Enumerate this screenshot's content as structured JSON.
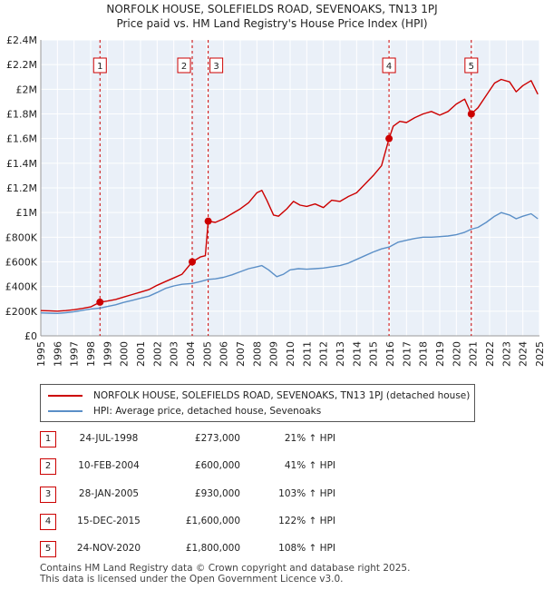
{
  "title_line1": "NORFOLK HOUSE, SOLEFIELDS ROAD, SEVENOAKS, TN13 1PJ",
  "title_line2": "Price paid vs. HM Land Registry's House Price Index (HPI)",
  "colors": {
    "property": "#cc0000",
    "hpi": "#5b8fc7",
    "bg": "#eaf0f8",
    "grid": "#ffffff"
  },
  "legend": {
    "property": "NORFOLK HOUSE, SOLEFIELDS ROAD, SEVENOAKS, TN13 1PJ (detached house)",
    "hpi": "HPI: Average price, detached house, Sevenoaks"
  },
  "sales": [
    {
      "num": "1",
      "date": "24-JUL-1998",
      "price": "£273,000",
      "hpi": "21% ↑ HPI"
    },
    {
      "num": "2",
      "date": "10-FEB-2004",
      "price": "£600,000",
      "hpi": "41% ↑ HPI"
    },
    {
      "num": "3",
      "date": "28-JAN-2005",
      "price": "£930,000",
      "hpi": "103% ↑ HPI"
    },
    {
      "num": "4",
      "date": "15-DEC-2015",
      "price": "£1,600,000",
      "hpi": "122% ↑ HPI"
    },
    {
      "num": "5",
      "date": "24-NOV-2020",
      "price": "£1,800,000",
      "hpi": "108% ↑ HPI"
    }
  ],
  "footer": {
    "line1": "Contains HM Land Registry data © Crown copyright and database right 2025.",
    "line2": "This data is licensed under the Open Government Licence v3.0."
  },
  "chart_data": {
    "type": "line",
    "title": "NORFOLK HOUSE, SOLEFIELDS ROAD, SEVENOAKS, TN13 1PJ",
    "subtitle": "Price paid vs. HM Land Registry's House Price Index (HPI)",
    "xlim": [
      1995,
      2025
    ],
    "ylim": [
      0,
      2400000
    ],
    "x_ticks": [
      "1995",
      "1996",
      "1997",
      "1998",
      "1999",
      "2000",
      "2001",
      "2002",
      "2003",
      "2004",
      "2005",
      "2006",
      "2007",
      "2008",
      "2009",
      "2010",
      "2011",
      "2012",
      "2013",
      "2014",
      "2015",
      "2016",
      "2017",
      "2018",
      "2019",
      "2020",
      "2021",
      "2022",
      "2023",
      "2024",
      "2025"
    ],
    "y_ticks": [
      {
        "value": 0,
        "label": "£0"
      },
      {
        "value": 200000,
        "label": "£200K"
      },
      {
        "value": 400000,
        "label": "£400K"
      },
      {
        "value": 600000,
        "label": "£600K"
      },
      {
        "value": 800000,
        "label": "£800K"
      },
      {
        "value": 1000000,
        "label": "£1M"
      },
      {
        "value": 1200000,
        "label": "£1.2M"
      },
      {
        "value": 1400000,
        "label": "£1.4M"
      },
      {
        "value": 1600000,
        "label": "£1.6M"
      },
      {
        "value": 1800000,
        "label": "£1.8M"
      },
      {
        "value": 2000000,
        "label": "£2M"
      },
      {
        "value": 2200000,
        "label": "£2.2M"
      },
      {
        "value": 2400000,
        "label": "£2.4M"
      }
    ],
    "grid": true,
    "legend_position": "bottom",
    "series": [
      {
        "name": "NORFOLK HOUSE, SOLEFIELDS ROAD, SEVENOAKS, TN13 1PJ (detached house)",
        "color": "#cc0000",
        "points": [
          [
            1995.0,
            205000
          ],
          [
            1995.5,
            203000
          ],
          [
            1996.0,
            200000
          ],
          [
            1996.5,
            205000
          ],
          [
            1997.0,
            212000
          ],
          [
            1997.5,
            222000
          ],
          [
            1998.0,
            235000
          ],
          [
            1998.56,
            273000
          ],
          [
            1999.0,
            282000
          ],
          [
            1999.5,
            295000
          ],
          [
            2000.0,
            315000
          ],
          [
            2000.5,
            335000
          ],
          [
            2001.0,
            355000
          ],
          [
            2001.5,
            375000
          ],
          [
            2002.0,
            410000
          ],
          [
            2002.5,
            440000
          ],
          [
            2003.0,
            470000
          ],
          [
            2003.5,
            500000
          ],
          [
            2004.11,
            600000
          ],
          [
            2004.6,
            640000
          ],
          [
            2004.9,
            650000
          ],
          [
            2005.07,
            930000
          ],
          [
            2005.5,
            920000
          ],
          [
            2006.0,
            950000
          ],
          [
            2006.5,
            990000
          ],
          [
            2007.0,
            1030000
          ],
          [
            2007.5,
            1080000
          ],
          [
            2008.0,
            1160000
          ],
          [
            2008.3,
            1180000
          ],
          [
            2008.6,
            1100000
          ],
          [
            2009.0,
            980000
          ],
          [
            2009.3,
            970000
          ],
          [
            2009.8,
            1030000
          ],
          [
            2010.2,
            1090000
          ],
          [
            2010.6,
            1060000
          ],
          [
            2011.0,
            1050000
          ],
          [
            2011.5,
            1070000
          ],
          [
            2012.0,
            1040000
          ],
          [
            2012.5,
            1100000
          ],
          [
            2013.0,
            1090000
          ],
          [
            2013.5,
            1130000
          ],
          [
            2014.0,
            1160000
          ],
          [
            2014.5,
            1230000
          ],
          [
            2015.0,
            1300000
          ],
          [
            2015.5,
            1380000
          ],
          [
            2015.95,
            1600000
          ],
          [
            2016.2,
            1700000
          ],
          [
            2016.6,
            1740000
          ],
          [
            2017.0,
            1730000
          ],
          [
            2017.5,
            1770000
          ],
          [
            2018.0,
            1800000
          ],
          [
            2018.5,
            1820000
          ],
          [
            2019.0,
            1790000
          ],
          [
            2019.5,
            1820000
          ],
          [
            2020.0,
            1880000
          ],
          [
            2020.5,
            1920000
          ],
          [
            2020.9,
            1800000
          ],
          [
            2021.3,
            1850000
          ],
          [
            2021.8,
            1950000
          ],
          [
            2022.3,
            2050000
          ],
          [
            2022.7,
            2080000
          ],
          [
            2023.2,
            2060000
          ],
          [
            2023.6,
            1980000
          ],
          [
            2024.0,
            2030000
          ],
          [
            2024.5,
            2070000
          ],
          [
            2024.9,
            1960000
          ]
        ]
      },
      {
        "name": "HPI: Average price, detached house, Sevenoaks",
        "color": "#5b8fc7",
        "points": [
          [
            1995.0,
            186000
          ],
          [
            1995.5,
            184000
          ],
          [
            1996.0,
            182000
          ],
          [
            1996.5,
            188000
          ],
          [
            1997.0,
            196000
          ],
          [
            1997.5,
            207000
          ],
          [
            1998.0,
            218000
          ],
          [
            1998.56,
            225000
          ],
          [
            1999.0,
            238000
          ],
          [
            1999.5,
            252000
          ],
          [
            2000.0,
            272000
          ],
          [
            2000.5,
            288000
          ],
          [
            2001.0,
            305000
          ],
          [
            2001.5,
            322000
          ],
          [
            2002.0,
            352000
          ],
          [
            2002.5,
            385000
          ],
          [
            2003.0,
            405000
          ],
          [
            2003.5,
            418000
          ],
          [
            2004.11,
            425000
          ],
          [
            2004.6,
            440000
          ],
          [
            2005.07,
            458000
          ],
          [
            2005.5,
            462000
          ],
          [
            2006.0,
            475000
          ],
          [
            2006.5,
            495000
          ],
          [
            2007.0,
            520000
          ],
          [
            2007.5,
            545000
          ],
          [
            2008.0,
            560000
          ],
          [
            2008.3,
            570000
          ],
          [
            2008.7,
            535000
          ],
          [
            2009.2,
            480000
          ],
          [
            2009.6,
            500000
          ],
          [
            2010.0,
            535000
          ],
          [
            2010.5,
            545000
          ],
          [
            2011.0,
            540000
          ],
          [
            2011.5,
            545000
          ],
          [
            2012.0,
            550000
          ],
          [
            2012.5,
            560000
          ],
          [
            2013.0,
            570000
          ],
          [
            2013.5,
            590000
          ],
          [
            2014.0,
            620000
          ],
          [
            2014.5,
            650000
          ],
          [
            2015.0,
            680000
          ],
          [
            2015.5,
            705000
          ],
          [
            2015.95,
            720000
          ],
          [
            2016.5,
            760000
          ],
          [
            2017.0,
            775000
          ],
          [
            2017.5,
            790000
          ],
          [
            2018.0,
            800000
          ],
          [
            2018.5,
            800000
          ],
          [
            2019.0,
            805000
          ],
          [
            2019.5,
            810000
          ],
          [
            2020.0,
            820000
          ],
          [
            2020.5,
            840000
          ],
          [
            2020.9,
            865000
          ],
          [
            2021.3,
            880000
          ],
          [
            2021.8,
            920000
          ],
          [
            2022.3,
            970000
          ],
          [
            2022.7,
            1000000
          ],
          [
            2023.2,
            980000
          ],
          [
            2023.6,
            950000
          ],
          [
            2024.0,
            970000
          ],
          [
            2024.5,
            990000
          ],
          [
            2024.9,
            950000
          ]
        ]
      }
    ],
    "markers": [
      {
        "label": "1",
        "x": 1998.56,
        "y": 273000
      },
      {
        "label": "2",
        "x": 2004.11,
        "y": 600000
      },
      {
        "label": "3",
        "x": 2005.07,
        "y": 930000
      },
      {
        "label": "4",
        "x": 2015.95,
        "y": 1600000
      },
      {
        "label": "5",
        "x": 2020.9,
        "y": 1800000
      }
    ]
  }
}
